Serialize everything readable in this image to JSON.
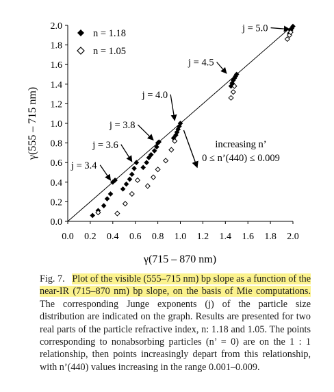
{
  "chart_data": {
    "type": "scatter",
    "xlabel": "γ(715 – 870 nm)",
    "ylabel": "γ(555 – 715 nm)",
    "xlim": [
      0.0,
      2.0
    ],
    "ylim": [
      0.0,
      2.0
    ],
    "x_ticks": [
      "0.0",
      "0.2",
      "0.4",
      "0.6",
      "0.8",
      "1.0",
      "1.2",
      "1.4",
      "1.6",
      "1.8",
      "2.0"
    ],
    "y_ticks": [
      "0.0",
      "0.2",
      "0.4",
      "0.6",
      "0.8",
      "1.0",
      "1.2",
      "1.4",
      "1.6",
      "1.8",
      "2.0"
    ],
    "grid": false,
    "legend_position": "top-left",
    "reference_line": {
      "from": [
        0,
        0
      ],
      "to": [
        2,
        2
      ]
    },
    "series": [
      {
        "name": "n = 1.18",
        "marker": "filled-diamond",
        "color": "#000000",
        "points": [
          [
            0.22,
            0.06
          ],
          [
            0.27,
            0.11
          ],
          [
            0.32,
            0.16
          ],
          [
            0.35,
            0.23
          ],
          [
            0.38,
            0.28
          ],
          [
            0.4,
            0.4
          ],
          [
            0.42,
            0.42
          ],
          [
            0.49,
            0.33
          ],
          [
            0.52,
            0.38
          ],
          [
            0.55,
            0.43
          ],
          [
            0.57,
            0.48
          ],
          [
            0.59,
            0.54
          ],
          [
            0.61,
            0.6
          ],
          [
            0.67,
            0.55
          ],
          [
            0.7,
            0.6
          ],
          [
            0.72,
            0.65
          ],
          [
            0.74,
            0.68
          ],
          [
            0.77,
            0.72
          ],
          [
            0.79,
            0.76
          ],
          [
            0.8,
            0.8
          ],
          [
            0.81,
            0.81
          ],
          [
            0.94,
            0.85
          ],
          [
            0.96,
            0.88
          ],
          [
            0.97,
            0.91
          ],
          [
            0.98,
            0.94
          ],
          [
            0.99,
            0.97
          ],
          [
            1.0,
            1.0
          ],
          [
            1.45,
            1.38
          ],
          [
            1.46,
            1.41
          ],
          [
            1.47,
            1.44
          ],
          [
            1.48,
            1.46
          ],
          [
            1.49,
            1.48
          ],
          [
            1.5,
            1.5
          ],
          [
            1.97,
            1.92
          ],
          [
            1.98,
            1.95
          ],
          [
            1.99,
            1.97
          ],
          [
            2.0,
            1.99
          ]
        ]
      },
      {
        "name": "n = 1.05",
        "marker": "open-diamond",
        "color": "#000000",
        "points": [
          [
            0.27,
            0.09
          ],
          [
            0.44,
            0.08
          ],
          [
            0.51,
            0.18
          ],
          [
            0.57,
            0.28
          ],
          [
            0.62,
            0.42
          ],
          [
            0.71,
            0.36
          ],
          [
            0.76,
            0.45
          ],
          [
            0.8,
            0.53
          ],
          [
            0.87,
            0.62
          ],
          [
            0.92,
            0.73
          ],
          [
            0.95,
            0.82
          ],
          [
            1.45,
            1.26
          ],
          [
            1.47,
            1.32
          ],
          [
            1.48,
            1.38
          ],
          [
            1.95,
            1.86
          ],
          [
            1.97,
            1.9
          ],
          [
            1.98,
            1.93
          ]
        ]
      }
    ],
    "annotations": [
      {
        "id": "j50",
        "text": "j = 5.0",
        "at": [
          1.55,
          1.94
        ],
        "target": [
          1.97,
          1.96
        ]
      },
      {
        "id": "j45",
        "text": "j = 4.5",
        "at": [
          1.07,
          1.59
        ],
        "target": [
          1.41,
          1.51
        ]
      },
      {
        "id": "j40",
        "text": "j = 4.0",
        "at": [
          0.66,
          1.26
        ],
        "target": [
          0.95,
          1.03
        ]
      },
      {
        "id": "j38",
        "text": "j = 3.8",
        "at": [
          0.37,
          0.95
        ],
        "target": [
          0.76,
          0.83
        ]
      },
      {
        "id": "j36",
        "text": "j = 3.6",
        "at": [
          0.22,
          0.75
        ],
        "target": [
          0.57,
          0.61
        ]
      },
      {
        "id": "j34",
        "text": "j = 3.4",
        "at": [
          0.03,
          0.54
        ],
        "target": [
          0.38,
          0.42
        ]
      }
    ],
    "note": {
      "line1": "increasing n’",
      "line2": "0 ≤ n’(440) ≤ 0.009",
      "arrow_from": [
        1.03,
        0.93
      ],
      "arrow_to": [
        1.15,
        0.55
      ]
    }
  },
  "caption": {
    "label": "Fig. 7.",
    "highlighted": "Plot of the visible (555–715 nm) bp slope as a function of the near-IR (715–870 nm) bp slope, on the basis of Mie computations.",
    "rest": "The corresponding Junge exponents (j) of the particle size distribution are indicated on the graph. Results are presented for two real parts of the particle refractive index, n: 1.18 and 1.05. The points corresponding to nonabsorbing particles (n’ = 0) are on the 1 : 1 relationship, then points increasingly depart from this relationship, with n’(440) values increasing in the range 0.001–0.009."
  }
}
